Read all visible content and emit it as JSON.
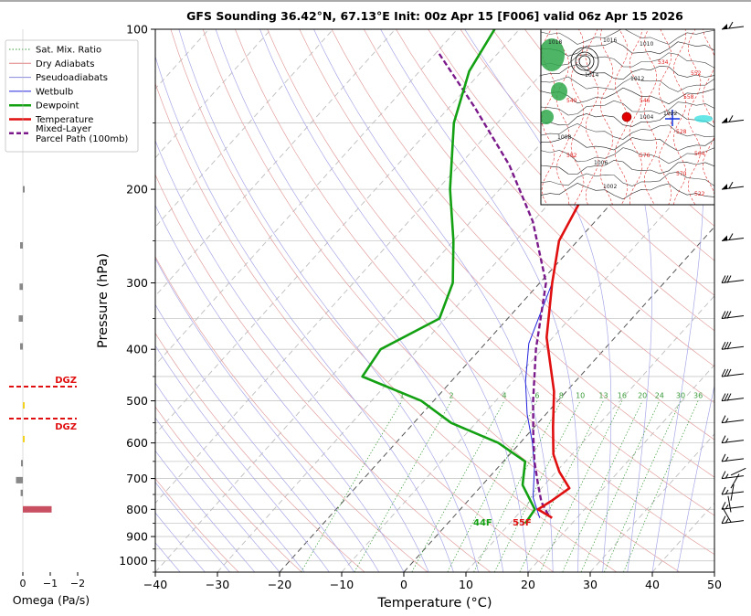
{
  "chart_data": {
    "type": "line",
    "title": "GFS Sounding 36.42°N, 67.13°E Init: 00z Apr 15 [F006] valid 06z Apr 15 2026",
    "xlabel": "Temperature (°C)",
    "ylabel": "Pressure (hPa)",
    "xlim": [
      -40,
      50
    ],
    "ylim": [
      1050,
      100
    ],
    "y_scale": "log",
    "x_ticks": [
      -40,
      -30,
      -20,
      -10,
      0,
      10,
      20,
      30,
      40,
      50
    ],
    "y_ticks": [
      100,
      200,
      300,
      400,
      500,
      600,
      700,
      800,
      900,
      1000
    ],
    "skew": "skew-T",
    "grid": true,
    "legend_position": "upper-left",
    "legend": [
      {
        "label": "Sat. Mix. Ratio",
        "color": "#3a9a3a",
        "style": "dotted"
      },
      {
        "label": "Dry Adiabats",
        "color": "#e08080",
        "style": "solid"
      },
      {
        "label": "Pseudoadiabats",
        "color": "#8888dd",
        "style": "solid"
      },
      {
        "label": "Wetbulb",
        "color": "#2222dd",
        "style": "solid"
      },
      {
        "label": "Dewpoint",
        "color": "#13a013",
        "style": "solid"
      },
      {
        "label": "Temperature",
        "color": "#e01010",
        "style": "solid"
      },
      {
        "label": "Mixed-Layer Parcel Path (100mb)",
        "color": "#7b1a8a",
        "style": "dashed"
      }
    ],
    "series": [
      {
        "name": "Temperature",
        "color": "#e01010",
        "points": [
          [
            16,
            830
          ],
          [
            12.5,
            800
          ],
          [
            13.5,
            770
          ],
          [
            14.5,
            730
          ],
          [
            10.5,
            680
          ],
          [
            7,
            630
          ],
          [
            3,
            560
          ],
          [
            -2,
            480
          ],
          [
            -11,
            380
          ],
          [
            -18,
            300
          ],
          [
            -23,
            250
          ],
          [
            -26,
            200
          ],
          [
            -23,
            165
          ],
          [
            -21,
            140
          ],
          [
            -19.5,
            120
          ],
          [
            -18,
            100
          ]
        ]
      },
      {
        "name": "Dewpoint",
        "color": "#13a013",
        "points": [
          [
            12.5,
            850
          ],
          [
            12,
            800
          ],
          [
            6.5,
            720
          ],
          [
            3.5,
            650
          ],
          [
            -3.5,
            600
          ],
          [
            -14,
            550
          ],
          [
            -22,
            500
          ],
          [
            -35,
            450
          ],
          [
            -36,
            400
          ],
          [
            -31,
            350
          ],
          [
            -34,
            300
          ],
          [
            -40,
            250
          ],
          [
            -48,
            200
          ],
          [
            -57,
            150
          ],
          [
            -62,
            120
          ],
          [
            -64,
            100
          ]
        ]
      },
      {
        "name": "Wetbulb",
        "color": "#2222dd",
        "points": [
          [
            14,
            830
          ],
          [
            10,
            760
          ],
          [
            6,
            670
          ],
          [
            2,
            600
          ],
          [
            -3,
            530
          ],
          [
            -8,
            460
          ],
          [
            -13,
            390
          ],
          [
            -18,
            300
          ]
        ]
      },
      {
        "name": "Mixed-Layer Parcel Path (100mb)",
        "color": "#7b1a8a",
        "points": [
          [
            15,
            820
          ],
          [
            12,
            775
          ],
          [
            9,
            720
          ],
          [
            5,
            650
          ],
          [
            1,
            580
          ],
          [
            -4,
            500
          ],
          [
            -11,
            400
          ],
          [
            -19,
            300
          ],
          [
            -30,
            230
          ],
          [
            -42,
            180
          ],
          [
            -56,
            140
          ],
          [
            -70,
            110
          ]
        ]
      }
    ],
    "mixing_ratio_labels": [
      "1",
      "2",
      "4",
      "6",
      "8",
      "10",
      "13",
      "16",
      "20",
      "24",
      "30",
      "36"
    ],
    "surface_labels": {
      "dewpoint": "44F",
      "temperature": "55F"
    },
    "dgz": {
      "label": "DGZ",
      "levels_hpa": [
        470,
        540
      ]
    },
    "omega": {
      "xlabel": "Omega (Pa/s)",
      "ticks": [
        "0",
        "−1",
        "−2"
      ],
      "bars": [
        {
          "p": 200,
          "value": -0.05,
          "color": "#888888"
        },
        {
          "p": 255,
          "value": 0.1,
          "color": "#888888"
        },
        {
          "p": 305,
          "value": 0.12,
          "color": "#888888"
        },
        {
          "p": 350,
          "value": 0.15,
          "color": "#888888"
        },
        {
          "p": 395,
          "value": 0.1,
          "color": "#888888"
        },
        {
          "p": 510,
          "value": -0.05,
          "color": "#f2d21c"
        },
        {
          "p": 590,
          "value": -0.05,
          "color": "#f2d21c"
        },
        {
          "p": 655,
          "value": 0.05,
          "color": "#888888"
        },
        {
          "p": 705,
          "value": 0.25,
          "color": "#888888"
        },
        {
          "p": 745,
          "value": 0.08,
          "color": "#888888"
        },
        {
          "p": 800,
          "value": -1.05,
          "color": "#c85060"
        }
      ]
    },
    "inset_map": {
      "city_labels": [
        "1018",
        "1016",
        "1010",
        "1014",
        "1012",
        "1008",
        "1004",
        "1006",
        "1002",
        "1022",
        "552",
        "558",
        "564",
        "570",
        "576",
        "582",
        "546",
        "540",
        "534",
        "528",
        "522"
      ],
      "point_marker_color": "#e00000"
    }
  }
}
